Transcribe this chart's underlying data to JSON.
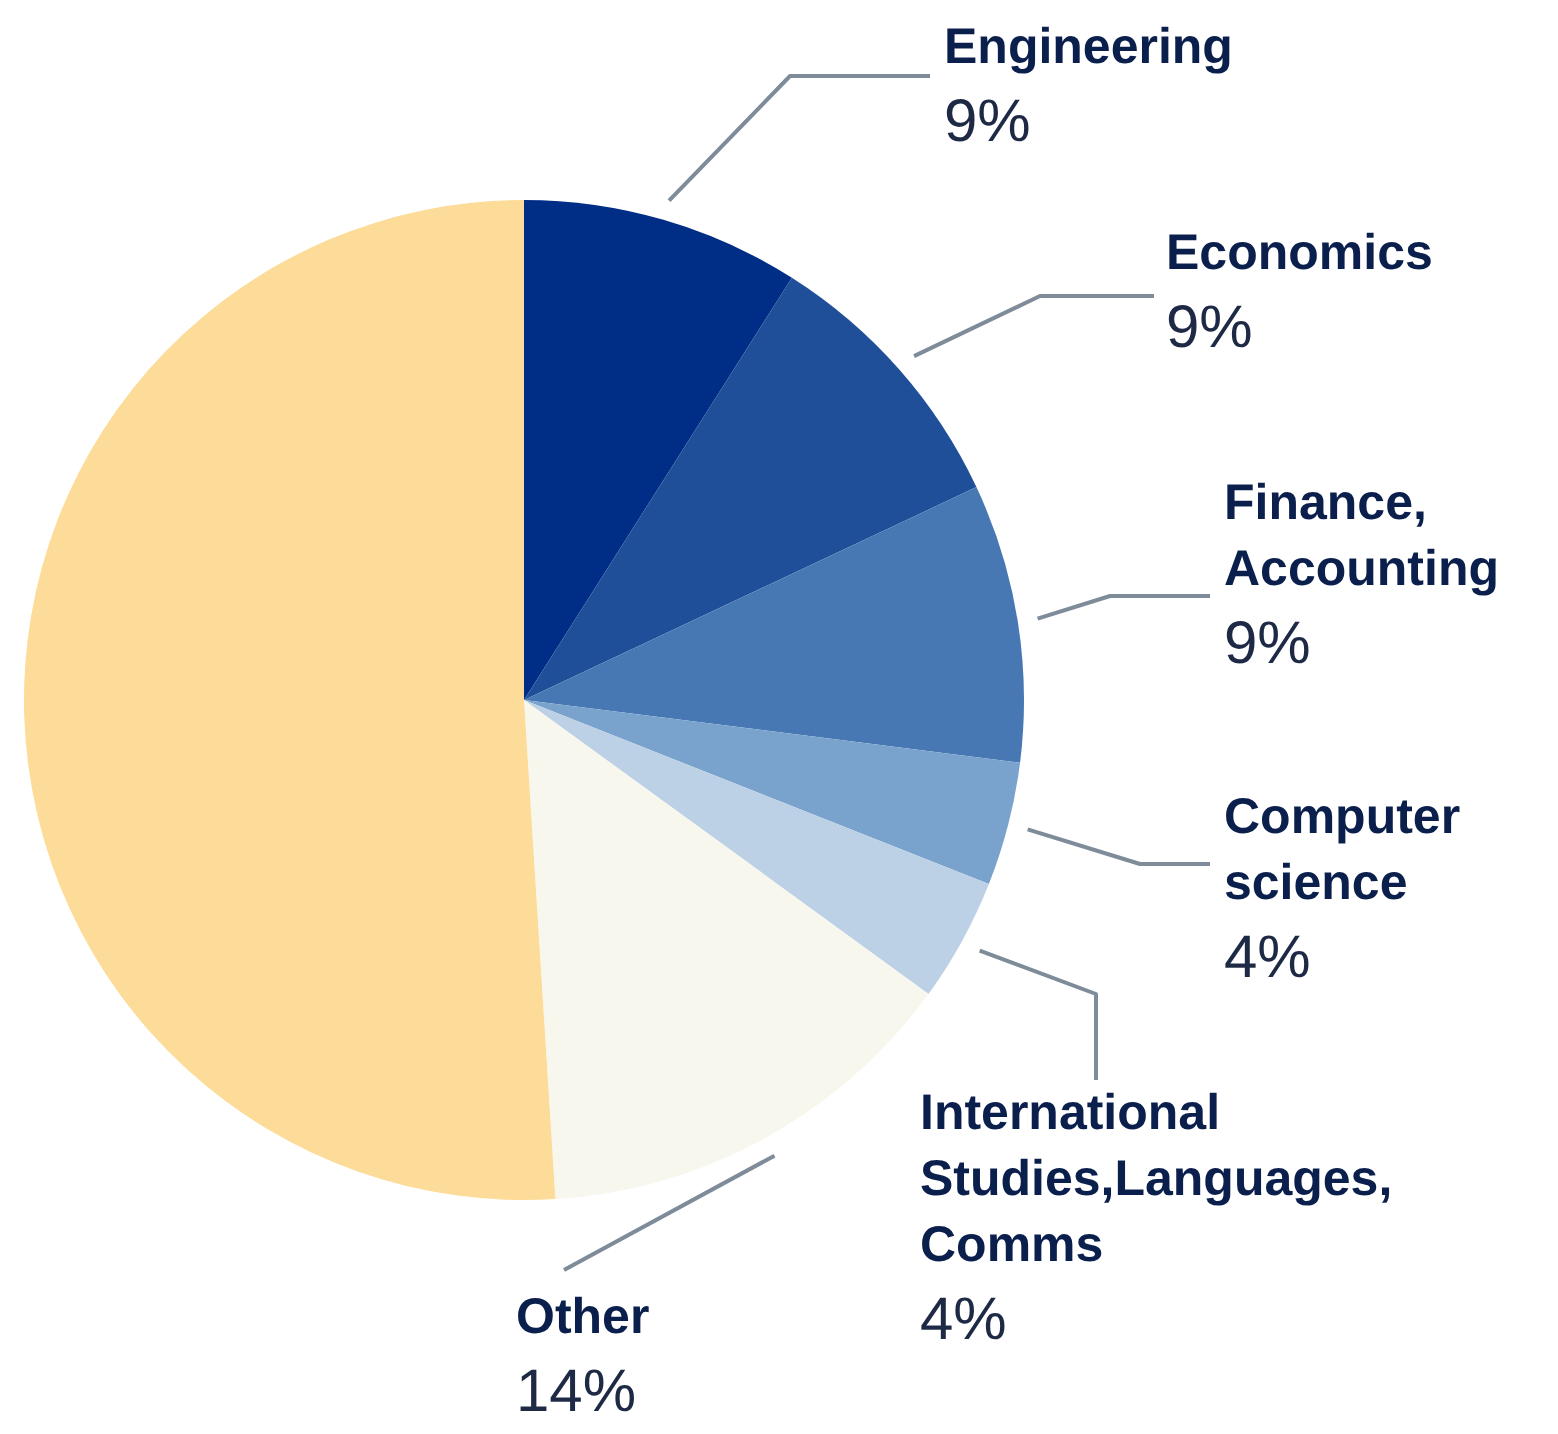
{
  "chart_data": {
    "type": "pie",
    "categories": [
      "Engineering",
      "Economics",
      "Finance, Accounting",
      "Computer science",
      "International Studies,Languages, Comms",
      "Other",
      null
    ],
    "values": [
      9,
      9,
      9,
      4,
      4,
      14,
      51
    ],
    "value_labels": [
      "9%",
      "9%",
      "9%",
      "4%",
      "4%",
      "14%",
      null
    ],
    "colors": [
      "#002e86",
      "#1f4f98",
      "#4878b3",
      "#79a3cc",
      "#bcd1e6",
      "#f8f7ee",
      "#fddb98"
    ]
  }
}
